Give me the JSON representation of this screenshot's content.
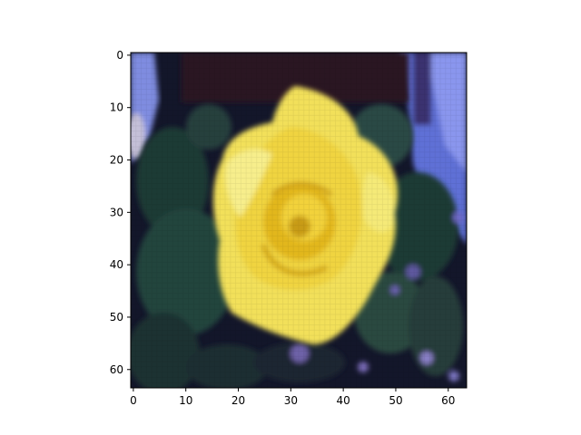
{
  "figure": {
    "description_colors": {
      "background": "#ffffff",
      "frame": "#000000"
    }
  },
  "chart_data": {
    "type": "heatmap",
    "render": "imshow-photo",
    "image_size": [
      64,
      64
    ],
    "xlim": [
      -0.5,
      63.5
    ],
    "ylim": [
      63.5,
      -0.5
    ],
    "x_ticks": [
      0,
      10,
      20,
      30,
      40,
      50,
      60
    ],
    "y_ticks": [
      0,
      10,
      20,
      30,
      40,
      50,
      60
    ],
    "grid": false,
    "title": "",
    "xlabel": "",
    "ylabel": "",
    "colors": {
      "petal_yellow": "#f2e05a",
      "petal_center": "#e0b820",
      "foliage_dark": "#1f3a35",
      "background_dark": "#101020",
      "sky_blue": "#6e7de0"
    }
  }
}
